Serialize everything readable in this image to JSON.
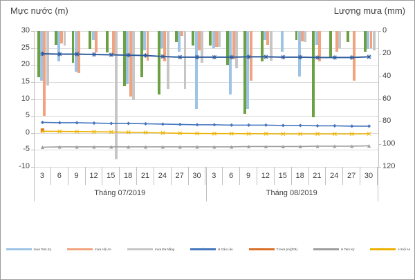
{
  "titles": {
    "left": "Mực nước (m)",
    "right": "Lượng mưa (mm)"
  },
  "left_axis": {
    "ticks": [
      30,
      25,
      20,
      15,
      10,
      5,
      0,
      -5,
      -10
    ],
    "min": -10,
    "max": 30
  },
  "right_axis": {
    "ticks": [
      0,
      20,
      40,
      60,
      80,
      100,
      120
    ],
    "min": 0,
    "max": 120,
    "reversed": true
  },
  "months": [
    {
      "label": "Tháng 07/2019",
      "dates": [
        "3",
        "6",
        "9",
        "12",
        "15",
        "18",
        "21",
        "24",
        "27",
        "30"
      ]
    },
    {
      "label": "Tháng 08/2019",
      "dates": [
        "3",
        "6",
        "9",
        "12",
        "15",
        "18",
        "21",
        "24",
        "27",
        "30"
      ]
    }
  ],
  "chart_data": {
    "type": "combo-bar-line",
    "x": [
      "07-03",
      "07-06",
      "07-09",
      "07-12",
      "07-15",
      "07-18",
      "07-21",
      "07-24",
      "07-27",
      "07-30",
      "08-03",
      "08-06",
      "08-09",
      "08-12",
      "08-15",
      "08-18",
      "08-21",
      "08-24",
      "08-27",
      "08-30"
    ],
    "bar_axis": {
      "label": "Lượng mưa (mm)",
      "range": [
        0,
        120
      ],
      "reversed": true,
      "origin": "top"
    },
    "line_axis": {
      "label": "Mực nước (m)",
      "range": [
        -10,
        30
      ]
    },
    "grid": true,
    "legend_position": "bottom",
    "bar_series": [
      {
        "name": "mưa Hà Lam",
        "color": "#6ba043",
        "values": [
          41,
          12,
          28,
          16,
          19,
          49,
          41,
          56,
          10,
          13,
          13,
          30,
          73,
          27,
          0,
          8,
          76,
          23,
          10,
          18
        ]
      },
      {
        "name": "mưa Tam Kỳ",
        "color": "#9dc3e6",
        "values": [
          44,
          27,
          36,
          8,
          0,
          47,
          17,
          15,
          18,
          69,
          15,
          56,
          69,
          8,
          18,
          40,
          12,
          0,
          0,
          16
        ]
      },
      {
        "name": "mưa Hội An",
        "color": "#f1a37f",
        "values": [
          75,
          11,
          37,
          19,
          21,
          58,
          26,
          27,
          4,
          17,
          14,
          25,
          44,
          12,
          0,
          9,
          27,
          18,
          44,
          15
        ]
      },
      {
        "name": "mưa Đà Nẵng",
        "color": "#c6c6c6",
        "values": [
          48,
          13,
          0,
          0,
          113,
          61,
          0,
          51,
          51,
          28,
          14,
          33,
          0,
          26,
          0,
          10,
          0,
          15,
          0,
          17
        ]
      }
    ],
    "line_series": [
      {
        "name": "H Câu Lâu",
        "color": "#4576be",
        "marker": "diamond",
        "layer": "back",
        "values": [
          3.1,
          3.0,
          3.0,
          2.9,
          2.8,
          2.8,
          2.7,
          2.6,
          2.5,
          2.4,
          2.4,
          2.3,
          2.3,
          2.3,
          2.2,
          2.2,
          2.1,
          2.1,
          2.0,
          2.0
        ]
      },
      {
        "name": "T.mưa (m)(P.B)",
        "color": "#d96f27",
        "marker": "square",
        "layer": "back",
        "values": [
          0.8,
          null,
          null,
          null,
          null,
          null,
          null,
          null,
          null,
          null,
          null,
          null,
          null,
          null,
          null,
          null,
          null,
          null,
          null,
          null
        ]
      },
      {
        "name": "H Hội An",
        "color": "#edb100",
        "marker": "x",
        "layer": "back",
        "values": [
          0.5,
          0.45,
          0.4,
          0.35,
          0.3,
          0.2,
          0.1,
          0.0,
          -0.1,
          -0.15,
          -0.2,
          -0.2,
          -0.25,
          -0.25,
          -0.3,
          -0.3,
          -0.3,
          -0.3,
          -0.3,
          -0.25
        ]
      },
      {
        "name": "H Tam Kỳ",
        "color": "#9e9e9e",
        "marker": "triangle",
        "layer": "back",
        "values": [
          -4.2,
          -4.1,
          -4.1,
          -4.1,
          -4.1,
          -4.1,
          -4.1,
          -4.1,
          -4.1,
          -4.1,
          -4.1,
          -4.1,
          -4.0,
          -4.0,
          -4.0,
          -4.0,
          -3.9,
          -3.9,
          -3.9,
          -3.8
        ]
      },
      {
        "name": "H Thành Mỹ",
        "color": "#2f5b9d",
        "marker": "asterisk",
        "layer": "front",
        "values": [
          23.3,
          23.2,
          23.2,
          23.1,
          23.0,
          22.9,
          22.8,
          22.5,
          22.3,
          22.3,
          22.3,
          22.3,
          22.4,
          22.4,
          22.3,
          22.3,
          22.2,
          22.2,
          22.2,
          22.4
        ]
      }
    ]
  },
  "legend": [
    {
      "label": "mưa Hà Lam",
      "color": "#6ba043",
      "marker": "none"
    },
    {
      "label": "mưa Tam Kỳ",
      "color": "#9dc3e6",
      "marker": "none"
    },
    {
      "label": "mưa Hội An",
      "color": "#f1a37f",
      "marker": "none"
    },
    {
      "label": "mưa Đà Nẵng",
      "color": "#c6c6c6",
      "marker": "none"
    },
    {
      "label": "H Câu Lâu",
      "color": "#4576be",
      "marker": "diamond"
    },
    {
      "label": "T.mưa (m)(P.B)",
      "color": "#d96f27",
      "marker": "square"
    },
    {
      "label": "H Tam Kỳ",
      "color": "#9e9e9e",
      "marker": "triangle"
    },
    {
      "label": "H Hội An",
      "color": "#edb100",
      "marker": "x"
    },
    {
      "label": "H Thành Mỹ",
      "color": "#2f5b9d",
      "marker": "asterisk"
    }
  ],
  "palette": {
    "grid": "#d9d9d9",
    "axis": "#bfbfbf",
    "text": "#3f3f3f"
  }
}
